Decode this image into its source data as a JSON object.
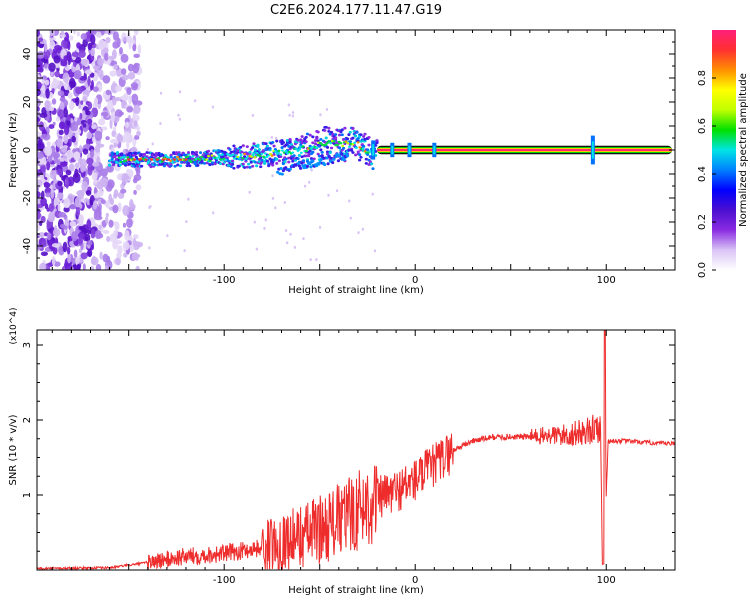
{
  "title": "C2E6.2024.177.11.47.G19",
  "chart_data": [
    {
      "type": "heatmap",
      "xlabel": "Height of straight line (km)",
      "ylabel": "Frequency (Hz)",
      "xlim": [
        -198,
        136
      ],
      "ylim": [
        -50,
        50
      ],
      "xticks": [
        -100,
        0,
        100
      ],
      "yticks": [
        -40,
        -20,
        0,
        20,
        40
      ],
      "grid": false,
      "colorbar": {
        "label": "Normalized spectral amplitude",
        "range": [
          0,
          1
        ],
        "ticks": [
          0.0,
          0.2,
          0.4,
          0.6,
          0.8
        ],
        "colors": [
          "#ffffff",
          "#d9c4f5",
          "#8a2be2",
          "#4b0fd0",
          "#0000ff",
          "#0080ff",
          "#00e5e5",
          "#00e000",
          "#c0ff00",
          "#ffff00",
          "#ff9000",
          "#ff3030",
          "#ff1f7a"
        ]
      },
      "trace": {
        "x": [
          -160,
          -140,
          -120,
          -100,
          -80,
          -60,
          -45,
          -30,
          -20,
          0,
          20,
          60,
          100,
          136
        ],
        "y": [
          -4,
          -4,
          -4,
          -3,
          -2,
          0,
          3,
          2,
          -2,
          -1,
          0,
          0,
          0,
          0
        ]
      }
    },
    {
      "type": "line",
      "xlabel": "Height of straight line (km)",
      "ylabel": "SNR (10 * v/v)",
      "yscale_label": "(x10^4)",
      "xlim": [
        -198,
        136
      ],
      "ylim": [
        0,
        3.2
      ],
      "xticks": [
        -100,
        0,
        100
      ],
      "yticks": [
        1,
        2,
        3
      ],
      "grid": false,
      "series": [
        {
          "color": "#ee2c2c",
          "x": [
            -198,
            -160,
            -140,
            -120,
            -100,
            -80,
            -60,
            -40,
            -30,
            -20,
            -10,
            0,
            10,
            20,
            30,
            40,
            60,
            80,
            90,
            97,
            98,
            99,
            100,
            101,
            110,
            120,
            136
          ],
          "y": [
            0.02,
            0.03,
            0.1,
            0.18,
            0.22,
            0.3,
            0.45,
            0.65,
            0.8,
            0.95,
            1.05,
            1.2,
            1.4,
            1.6,
            1.72,
            1.77,
            1.78,
            1.8,
            1.85,
            1.9,
            0.08,
            3.2,
            1.0,
            1.72,
            1.72,
            1.7,
            1.68
          ]
        }
      ]
    }
  ]
}
